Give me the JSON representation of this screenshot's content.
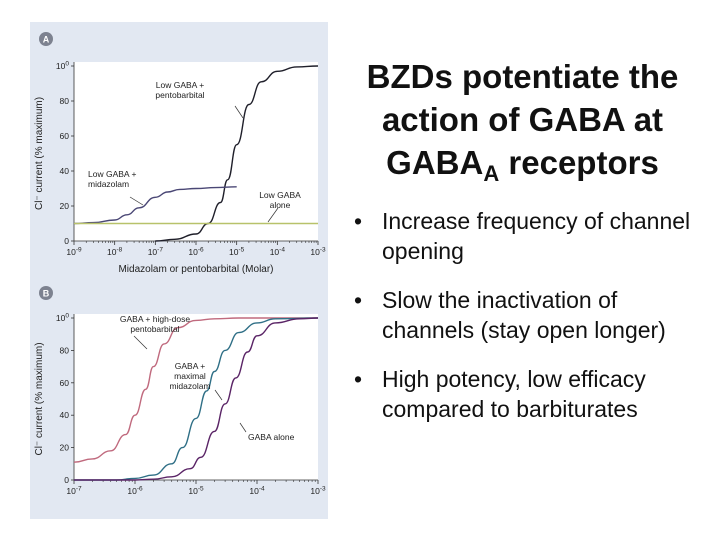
{
  "slide": {
    "title_line1": "BZDs potentiate the",
    "title_line2": "action of GABA at",
    "title_line3_main": "GABA",
    "title_line3_sub": "A",
    "title_line3_rest": " receptors",
    "bullets": [
      "Increase frequency of channel opening",
      "Slow the inactivation of channels (stay open longer)",
      "High potency, low efficacy compared to barbiturates"
    ],
    "bullet_glyph": "•"
  },
  "chart_data": [
    {
      "panel_label": "A",
      "type": "line",
      "xscale": "log",
      "xlim": [
        1e-09,
        0.001
      ],
      "ylim": [
        0,
        100
      ],
      "xticks": [
        "10-9",
        "10-8",
        "10-7",
        "10-6",
        "10-5",
        "10-4",
        "10-3"
      ],
      "yticks": [
        "0",
        "20",
        "40",
        "60",
        "80",
        "100"
      ],
      "xlabel": "Midazolam or pentobarbital (Molar)",
      "ylabel": "Cl⁻ current (% maximum)",
      "series": [
        {
          "label": "Low GABA + pentobarbital",
          "color": "#1f1f2a",
          "x": [
            1e-07,
            3e-07,
            1e-06,
            2e-06,
            4e-06,
            6e-06,
            1e-05,
            2e-05,
            4e-05,
            0.0001,
            0.0003,
            0.001
          ],
          "values": [
            0,
            1,
            4,
            10,
            22,
            35,
            55,
            78,
            91,
            97,
            99.5,
            100
          ]
        },
        {
          "label": "Low GABA + midazolam",
          "color": "#4a4775",
          "x": [
            1e-09,
            3e-09,
            1e-08,
            2e-08,
            4e-08,
            1e-07,
            2e-07,
            4e-07,
            1e-06,
            3e-06,
            1e-05
          ],
          "values": [
            10,
            10.5,
            12,
            15,
            19,
            25,
            28,
            29.5,
            30,
            30.5,
            31
          ]
        },
        {
          "label": "Low GABA alone",
          "color": "#b8c26a",
          "x": [
            1e-09,
            0.001
          ],
          "values": [
            10,
            10
          ]
        }
      ],
      "annotations": [
        {
          "text_lines": [
            "Low GABA +",
            "pentobarbital"
          ]
        },
        {
          "text_lines": [
            "Low GABA +",
            "midazolam"
          ]
        },
        {
          "text_lines": [
            "Low GABA",
            "alone"
          ]
        }
      ]
    },
    {
      "panel_label": "B",
      "type": "line",
      "xscale": "log",
      "xlim": [
        1e-07,
        0.001
      ],
      "ylim": [
        0,
        100
      ],
      "xticks": [
        "10-7",
        "10-6",
        "10-5",
        "10-4",
        "10-3"
      ],
      "yticks": [
        "0",
        "20",
        "40",
        "60",
        "80",
        "100"
      ],
      "xlabel": "",
      "ylabel": "Cl⁻ current (% maximum)",
      "series": [
        {
          "label": "GABA + high-dose pentobarbital",
          "color": "#c06a7e",
          "x": [
            1e-07,
            2e-07,
            4e-07,
            7e-07,
            1e-06,
            1.5e-06,
            2e-06,
            3e-06,
            5e-06,
            1e-05,
            2e-05,
            5e-05,
            0.0001,
            0.001
          ],
          "values": [
            11,
            13,
            18,
            28,
            40,
            56,
            70,
            84,
            94,
            98.5,
            99.5,
            100,
            100,
            100
          ]
        },
        {
          "label": "GABA + maximal midazolam",
          "color": "#2f6f86",
          "x": [
            1e-07,
            5e-07,
            1e-06,
            2e-06,
            4e-06,
            6e-06,
            1e-05,
            1.5e-05,
            2e-05,
            3e-05,
            5e-05,
            0.0001,
            0.0002,
            0.001
          ],
          "values": [
            0,
            0,
            1,
            3,
            10,
            20,
            38,
            55,
            67,
            80,
            91,
            97,
            99.5,
            100
          ]
        },
        {
          "label": "GABA alone",
          "color": "#5a2466",
          "x": [
            1e-07,
            1e-06,
            2e-06,
            4e-06,
            8e-06,
            1.2e-05,
            2e-05,
            3e-05,
            4.5e-05,
            7e-05,
            0.0001,
            0.0002,
            0.0005,
            0.001
          ],
          "values": [
            0,
            0,
            0.5,
            2,
            7,
            14,
            30,
            47,
            63,
            79,
            89,
            97,
            99.5,
            100
          ]
        }
      ],
      "annotations": [
        {
          "text_lines": [
            "GABA + high-dose",
            "pentobarbital"
          ]
        },
        {
          "text_lines": [
            "GABA +",
            "maximal",
            "midazolam"
          ]
        },
        {
          "text_lines": [
            "GABA alone"
          ]
        }
      ]
    }
  ]
}
